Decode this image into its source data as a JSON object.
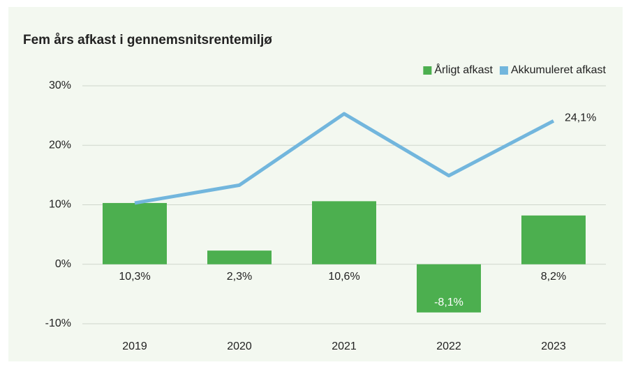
{
  "chart_data": {
    "type": "bar",
    "title": "Fem års afkast i gennemsnitsrentemiljø",
    "categories": [
      "2019",
      "2020",
      "2021",
      "2022",
      "2023"
    ],
    "series": [
      {
        "name": "Årligt afkast",
        "type": "bar",
        "color": "#4caf4f",
        "values": [
          10.3,
          2.3,
          10.6,
          -8.1,
          8.2
        ],
        "value_labels": [
          "10,3%",
          "2,3%",
          "10,6%",
          "-8,1%",
          "8,2%"
        ]
      },
      {
        "name": "Akkumuleret afkast",
        "type": "line",
        "color": "#72b6dd",
        "values": [
          10.3,
          13.3,
          25.3,
          14.9,
          24.1
        ],
        "value_labels": [
          null,
          null,
          null,
          null,
          "24,1%"
        ]
      }
    ],
    "ylim": [
      -10,
      30
    ],
    "yticks": [
      {
        "value": -10,
        "label": "-10%"
      },
      {
        "value": 0,
        "label": "0%"
      },
      {
        "value": 10,
        "label": "10%"
      },
      {
        "value": 20,
        "label": "20%"
      },
      {
        "value": 30,
        "label": "30%"
      }
    ],
    "grid": true,
    "legend": "top-right"
  }
}
